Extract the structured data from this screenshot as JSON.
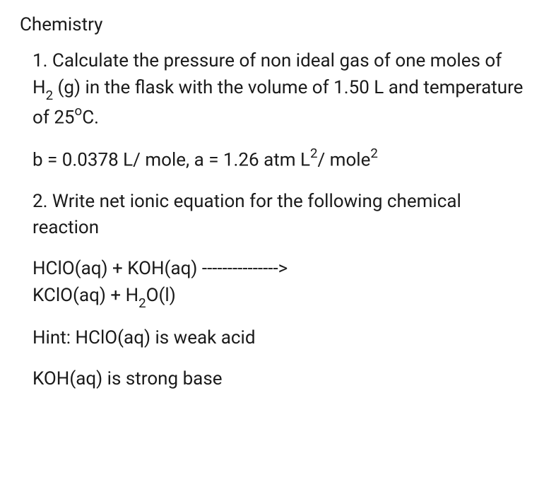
{
  "subject": "Chemistry",
  "q1": {
    "line1_a": "1. Calculate the pressure of non ideal gas of one moles of H",
    "line1_sub": "2",
    "line1_b": " (g) in the flask with the",
    "line2_a": "volume of 1.50 L and temperature of 25",
    "line2_sup": "o",
    "line2_b": "C.",
    "params_a": "b = 0.0378 L/ mole, a = 1.26 atm L",
    "params_sup1": "2",
    "params_b": "/ mole",
    "params_sup2": "2"
  },
  "q2": {
    "prompt": "2. Write net ionic equation for the following chemical reaction",
    "eq_a": "HClO(aq) + KOH(aq) --------------->",
    "eq_b_a": "KClO(aq) + H",
    "eq_b_sub": "2",
    "eq_b_b": "O(l)",
    "hint1": "Hint: HClO(aq) is weak acid",
    "hint2": "KOH(aq) is strong base"
  },
  "style": {
    "text_color": "#1a1a1a",
    "background_color": "#ffffff",
    "body_fontsize": 26,
    "heading_fontsize": 26
  }
}
